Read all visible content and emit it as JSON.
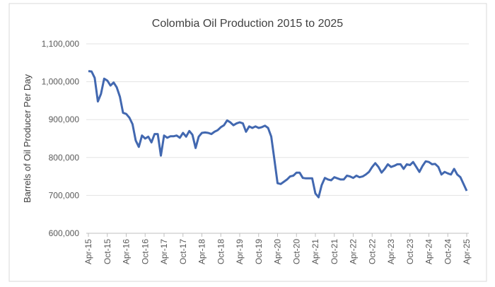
{
  "chart_data": {
    "type": "line",
    "title": "Colombia Oil Production  2015 to 2025",
    "xlabel": "",
    "ylabel": "Barrels of Oil Producer Per Day",
    "ylim": [
      600000,
      1100000
    ],
    "yticks": [
      600000,
      700000,
      800000,
      900000,
      1000000,
      1100000
    ],
    "ytick_labels": [
      "600,000",
      "700,000",
      "800,000",
      "900,000",
      "1,000,000",
      "1,100,000"
    ],
    "xtick_labels": [
      "Apr-15",
      "Oct-15",
      "Apr-16",
      "Oct-16",
      "Apr-17",
      "Oct-17",
      "Apr-18",
      "Oct-18",
      "Apr-19",
      "Oct-19",
      "Apr-20",
      "Oct-20",
      "Apr-21",
      "Oct-21",
      "Apr-22",
      "Oct-22",
      "Apr-23",
      "Oct-23",
      "Apr-24",
      "Oct-24",
      "Apr-25"
    ],
    "grid": true,
    "legend": "none",
    "x_start": "Apr-15",
    "x_step": "monthly",
    "series": [
      {
        "name": "Oil production",
        "color": "#4268b0",
        "values": [
          1028000,
          1027000,
          1010000,
          948000,
          968000,
          1008000,
          1003000,
          990000,
          998000,
          985000,
          960000,
          918000,
          915000,
          905000,
          888000,
          845000,
          828000,
          858000,
          850000,
          855000,
          840000,
          862000,
          862000,
          805000,
          858000,
          852000,
          856000,
          856000,
          858000,
          852000,
          865000,
          855000,
          870000,
          860000,
          825000,
          855000,
          865000,
          866000,
          865000,
          862000,
          868000,
          872000,
          880000,
          885000,
          898000,
          893000,
          885000,
          890000,
          893000,
          890000,
          868000,
          882000,
          878000,
          882000,
          878000,
          880000,
          884000,
          878000,
          855000,
          795000,
          732000,
          730000,
          736000,
          742000,
          750000,
          752000,
          760000,
          760000,
          746000,
          745000,
          745000,
          745000,
          705000,
          695000,
          727000,
          746000,
          742000,
          740000,
          748000,
          745000,
          742000,
          742000,
          752000,
          750000,
          746000,
          752000,
          748000,
          750000,
          755000,
          762000,
          775000,
          785000,
          775000,
          760000,
          770000,
          782000,
          775000,
          778000,
          782000,
          782000,
          770000,
          782000,
          780000,
          788000,
          775000,
          762000,
          778000,
          790000,
          788000,
          782000,
          783000,
          775000,
          755000,
          762000,
          758000,
          755000,
          770000,
          755000,
          748000,
          730000,
          712000
        ]
      }
    ]
  }
}
